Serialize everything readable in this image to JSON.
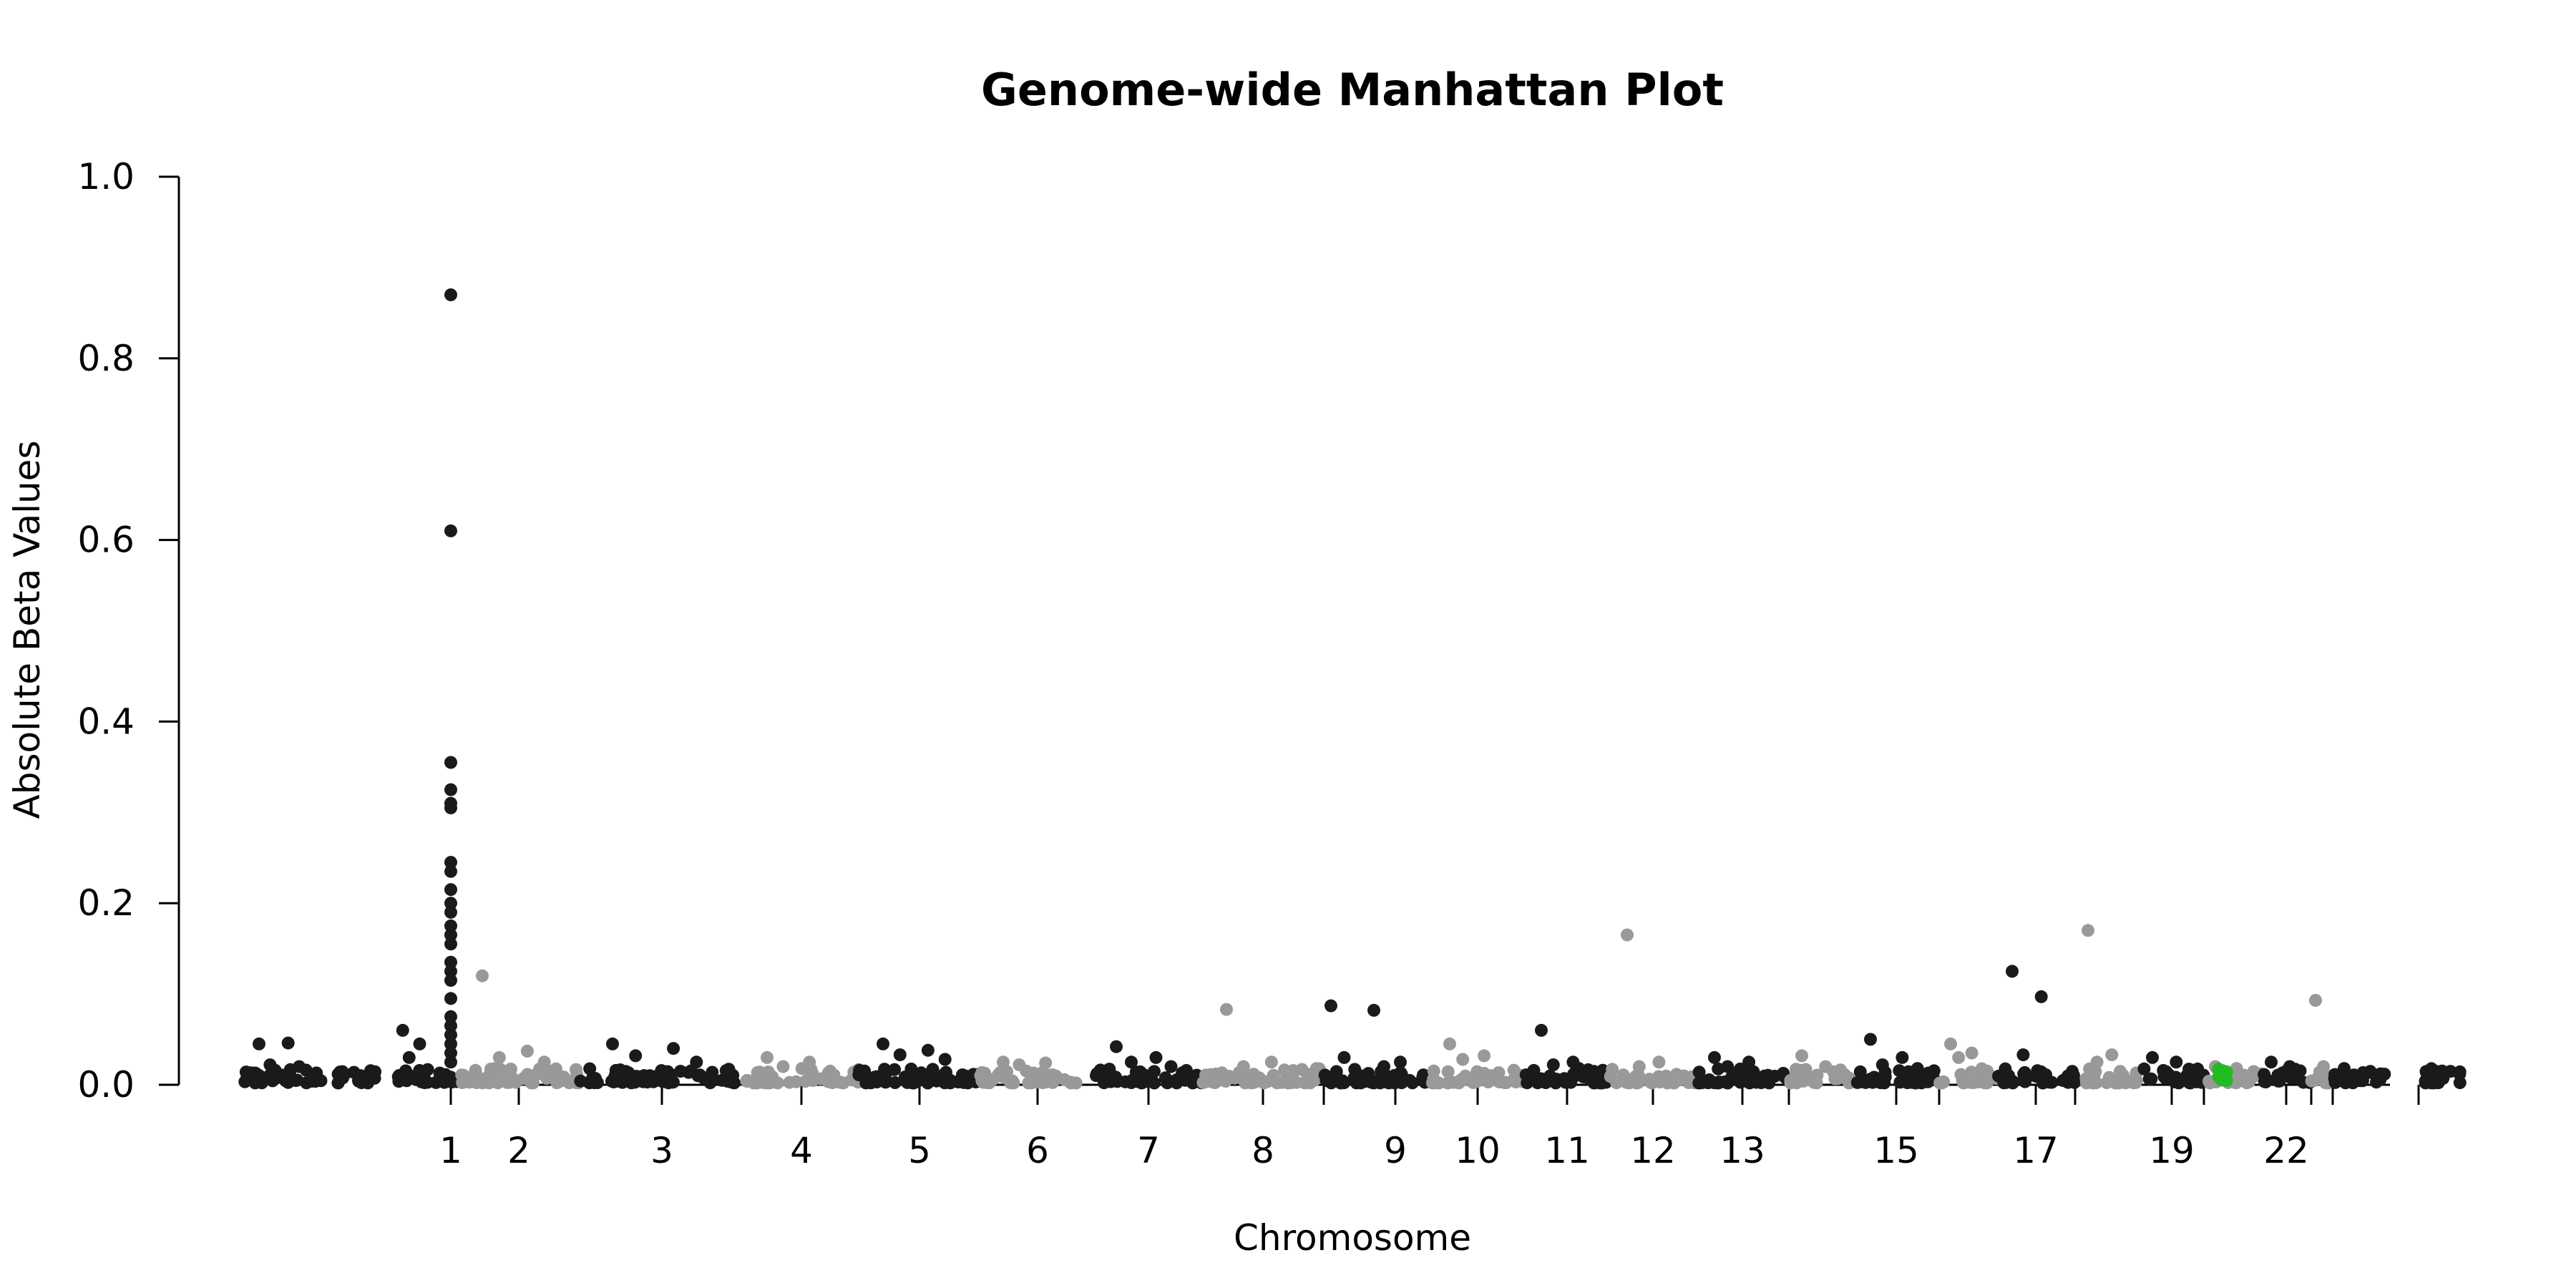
{
  "chart_data": {
    "type": "scatter",
    "title": "Genome-wide Manhattan Plot",
    "xlabel": "Chromosome",
    "ylabel": "Absolute Beta Values",
    "ylim": [
      0,
      1.0
    ],
    "yticks": [
      "0.0",
      "0.2",
      "0.4",
      "0.6",
      "0.8",
      "1.0"
    ],
    "grid": false,
    "legend": "none",
    "colors": {
      "odd": "#1a1a1a",
      "even": "#999999",
      "highlight": "#22bb22"
    },
    "chromosomes": [
      {
        "label": "",
        "tick": false,
        "start": -0.95,
        "end": -0.4,
        "color": "odd",
        "peaks": [
          0.045,
          0.046,
          0.022,
          0.02
        ]
      },
      {
        "label": "",
        "tick": false,
        "start": -0.3,
        "end": 0.0,
        "color": "odd",
        "peaks": [
          0.012,
          0.01
        ]
      },
      {
        "label": "",
        "tick": false,
        "start": 0.1,
        "end": 0.42,
        "color": "odd",
        "peaks": [
          0.06,
          0.045,
          0.03
        ]
      },
      {
        "label": "1",
        "tick": true,
        "start": 0.42,
        "end": 0.55,
        "color": "odd",
        "peaks": [
          0.87,
          0.61,
          0.355,
          0.325,
          0.31,
          0.305,
          0.245,
          0.235,
          0.215,
          0.2,
          0.19,
          0.175,
          0.165,
          0.155,
          0.135,
          0.125,
          0.115,
          0.095,
          0.075,
          0.065,
          0.055,
          0.045,
          0.035,
          0.025
        ]
      },
      {
        "label": "2",
        "tick": true,
        "start": 0.55,
        "end": 1.4,
        "color": "even",
        "peaks": [
          0.12,
          0.037,
          0.03,
          0.025
        ]
      },
      {
        "label": "3",
        "tick": true,
        "start": 1.4,
        "end": 2.55,
        "color": "odd",
        "peaks": [
          0.045,
          0.04,
          0.032,
          0.025
        ]
      },
      {
        "label": "4",
        "tick": true,
        "start": 2.55,
        "end": 3.35,
        "color": "even",
        "peaks": [
          0.03,
          0.025,
          0.02
        ]
      },
      {
        "label": "5",
        "tick": true,
        "start": 3.35,
        "end": 4.2,
        "color": "odd",
        "peaks": [
          0.045,
          0.038,
          0.033,
          0.028
        ]
      },
      {
        "label": "6",
        "tick": true,
        "start": 4.2,
        "end": 5.0,
        "color": "even",
        "peaks": [
          0.025,
          0.024,
          0.022
        ]
      },
      {
        "label": "7",
        "tick": true,
        "start": 5.0,
        "end": 5.75,
        "color": "odd",
        "peaks": [
          0.042,
          0.03,
          0.025,
          0.02
        ]
      },
      {
        "label": "8",
        "tick": true,
        "start": 5.75,
        "end": 6.6,
        "color": "even",
        "peaks": [
          0.083,
          0.025,
          0.02
        ]
      },
      {
        "label": "",
        "tick": false,
        "start": 6.6,
        "end": 6.85,
        "color": "odd",
        "peaks": [
          0.087,
          0.03
        ]
      },
      {
        "label": "9",
        "tick": true,
        "start": 6.85,
        "end": 7.35,
        "color": "odd",
        "peaks": [
          0.082,
          0.025,
          0.02
        ]
      },
      {
        "label": "10",
        "tick": true,
        "start": 7.35,
        "end": 8.0,
        "color": "even",
        "peaks": [
          0.045,
          0.032,
          0.028
        ]
      },
      {
        "label": "11",
        "tick": true,
        "start": 8.0,
        "end": 8.6,
        "color": "odd",
        "peaks": [
          0.06,
          0.025,
          0.022
        ]
      },
      {
        "label": "12",
        "tick": true,
        "start": 8.6,
        "end": 9.2,
        "color": "even",
        "peaks": [
          0.165,
          0.025,
          0.02
        ]
      },
      {
        "label": "13",
        "tick": true,
        "start": 9.2,
        "end": 9.85,
        "color": "odd",
        "peaks": [
          0.03,
          0.025,
          0.02
        ]
      },
      {
        "label": "",
        "tick": false,
        "start": 9.85,
        "end": 10.3,
        "color": "even",
        "peaks": [
          0.032,
          0.02
        ]
      },
      {
        "label": "15",
        "tick": true,
        "start": 10.3,
        "end": 10.9,
        "color": "odd",
        "peaks": [
          0.05,
          0.03,
          0.022
        ]
      },
      {
        "label": "",
        "tick": false,
        "start": 10.9,
        "end": 11.3,
        "color": "even",
        "peaks": [
          0.045,
          0.035,
          0.03
        ]
      },
      {
        "label": "17",
        "tick": true,
        "start": 11.3,
        "end": 11.85,
        "color": "odd",
        "peaks": [
          0.125,
          0.097,
          0.033
        ]
      },
      {
        "label": "",
        "tick": false,
        "start": 11.85,
        "end": 12.3,
        "color": "even",
        "peaks": [
          0.17,
          0.033,
          0.025
        ]
      },
      {
        "label": "19",
        "tick": true,
        "start": 12.3,
        "end": 12.75,
        "color": "odd",
        "peaks": [
          0.03,
          0.025
        ]
      },
      {
        "label": "",
        "tick": false,
        "start": 12.75,
        "end": 13.15,
        "color": "even",
        "peaks": [
          0.02,
          0.018
        ],
        "highlight_at": 12.88
      },
      {
        "label": "22",
        "tick": true,
        "start": 13.15,
        "end": 13.5,
        "color": "odd",
        "peaks": [
          0.025,
          0.02
        ]
      },
      {
        "label": "",
        "tick": false,
        "start": 13.5,
        "end": 13.65,
        "color": "even",
        "peaks": [
          0.093,
          0.02
        ]
      },
      {
        "label": "",
        "tick": false,
        "start": 13.65,
        "end": 14.05,
        "color": "odd",
        "peaks": [
          0.018,
          0.012
        ]
      },
      {
        "label": "",
        "tick": false,
        "start": 14.25,
        "end": 14.55,
        "color": "odd",
        "peaks": [
          0.008,
          0.007
        ]
      }
    ]
  }
}
